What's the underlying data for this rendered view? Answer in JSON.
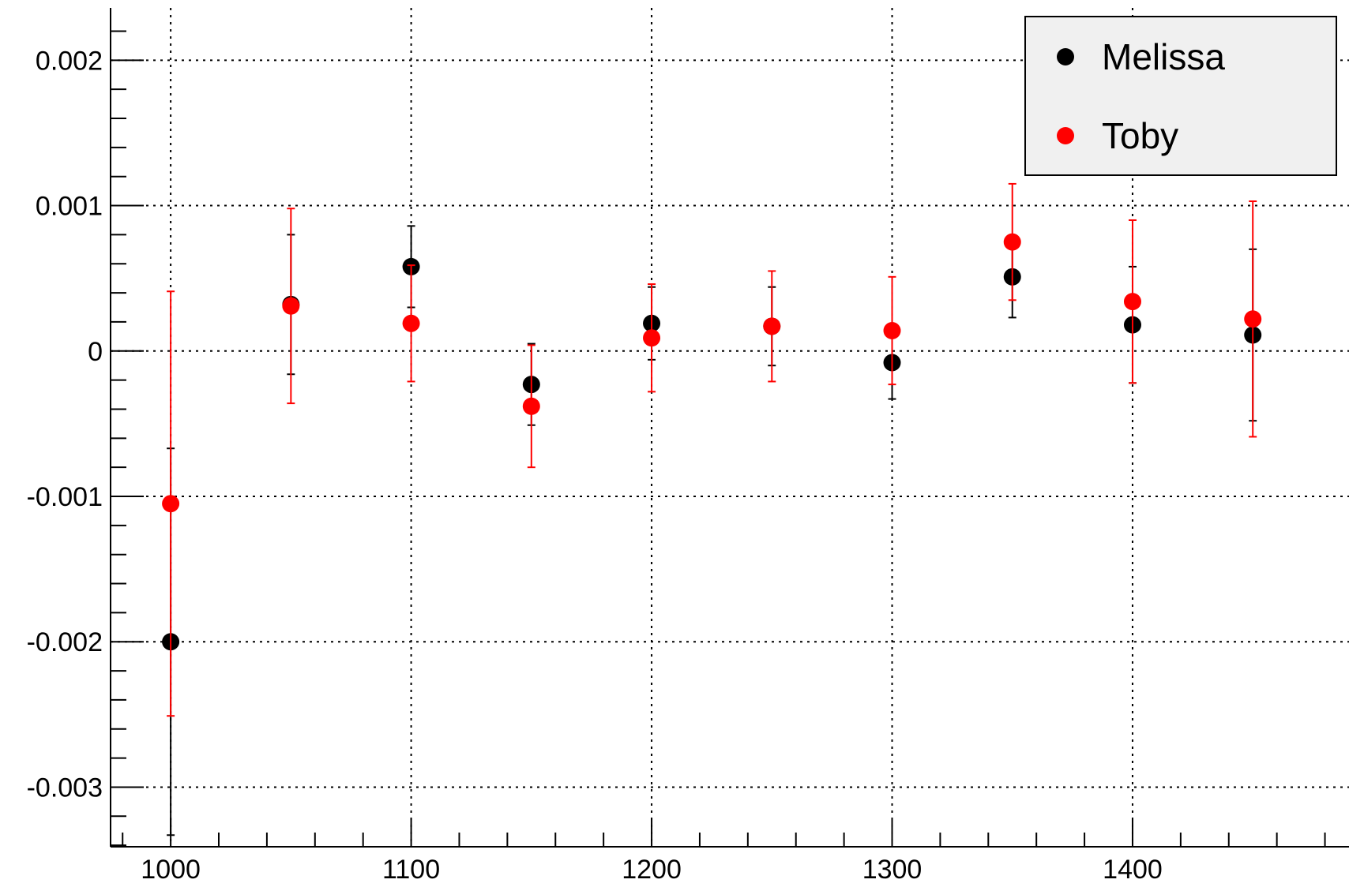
{
  "chart_data": {
    "type": "scatter",
    "title": "",
    "xlabel": "",
    "ylabel": "",
    "xlim": [
      975,
      1490
    ],
    "ylim": [
      -0.00341,
      0.00236
    ],
    "grid": true,
    "legend_placement": "top-right",
    "x_ticks": [
      {
        "value": 1000,
        "label": "1000"
      },
      {
        "value": 1100,
        "label": "1100"
      },
      {
        "value": 1200,
        "label": "1200"
      },
      {
        "value": 1300,
        "label": "1300"
      },
      {
        "value": 1400,
        "label": "1400"
      }
    ],
    "y_ticks": [
      {
        "value": 0.002,
        "label": "0.002"
      },
      {
        "value": 0.001,
        "label": "0.001"
      },
      {
        "value": 0,
        "label": "0"
      },
      {
        "value": -0.001,
        "label": "-0.001"
      },
      {
        "value": -0.002,
        "label": "-0.002"
      },
      {
        "value": -0.003,
        "label": "-0.003"
      }
    ],
    "series": [
      {
        "name": "Melissa",
        "color": "#000000",
        "points": [
          {
            "x": 1000,
            "y": -0.002,
            "err": 0.00133
          },
          {
            "x": 1050,
            "y": 0.00032,
            "err": 0.00048
          },
          {
            "x": 1100,
            "y": 0.00058,
            "err": 0.00028
          },
          {
            "x": 1150,
            "y": -0.00023,
            "err": 0.00028
          },
          {
            "x": 1200,
            "y": 0.00019,
            "err": 0.00025
          },
          {
            "x": 1250,
            "y": 0.00017,
            "err": 0.00027
          },
          {
            "x": 1300,
            "y": -8e-05,
            "err": 0.00025
          },
          {
            "x": 1350,
            "y": 0.00051,
            "err": 0.00028
          },
          {
            "x": 1400,
            "y": 0.00018,
            "err": 0.0004
          },
          {
            "x": 1450,
            "y": 0.00011,
            "err": 0.00059
          }
        ]
      },
      {
        "name": "Toby",
        "color": "#ff0000",
        "points": [
          {
            "x": 1000,
            "y": -0.00105,
            "err": 0.00146
          },
          {
            "x": 1050,
            "y": 0.00031,
            "err": 0.00067
          },
          {
            "x": 1100,
            "y": 0.00019,
            "err": 0.0004
          },
          {
            "x": 1150,
            "y": -0.00038,
            "err": 0.00042
          },
          {
            "x": 1200,
            "y": 9e-05,
            "err": 0.00037
          },
          {
            "x": 1250,
            "y": 0.00017,
            "err": 0.00038
          },
          {
            "x": 1300,
            "y": 0.00014,
            "err": 0.00037
          },
          {
            "x": 1350,
            "y": 0.00075,
            "err": 0.0004
          },
          {
            "x": 1400,
            "y": 0.00034,
            "err": 0.00056
          },
          {
            "x": 1450,
            "y": 0.00022,
            "err": 0.00081
          }
        ]
      }
    ]
  }
}
